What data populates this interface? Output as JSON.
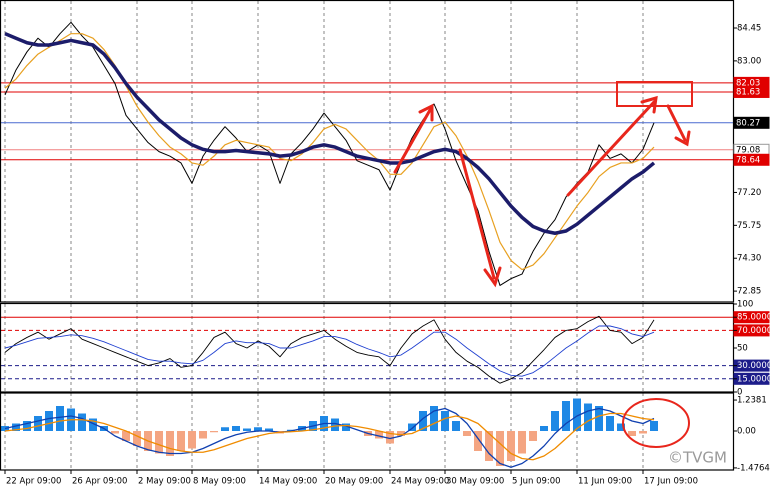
{
  "watermark": "©TVGM",
  "chart_data": [
    {
      "type": "line",
      "categories": [
        "22 Apr 09:00",
        null,
        null,
        null,
        null,
        null,
        "26 Apr 09:00",
        null,
        null,
        null,
        null,
        null,
        "2 May 09:00",
        null,
        null,
        null,
        null,
        "8 May 09:00",
        null,
        null,
        null,
        null,
        null,
        "14 May 09:00",
        null,
        null,
        null,
        null,
        null,
        "20 May 09:00",
        null,
        null,
        null,
        null,
        null,
        "24 May 09:00",
        null,
        null,
        null,
        null,
        "30 May 09:00",
        null,
        null,
        null,
        null,
        null,
        "5 Jun 09:00",
        null,
        null,
        null,
        null,
        null,
        "11 Jun 09:00",
        null,
        null,
        null,
        null,
        null,
        "17 Jun 09:00",
        null
      ],
      "series": [
        {
          "color": "#000000",
          "values": [
            81.5,
            82.6,
            83.4,
            84.0,
            83.6,
            84.2,
            84.7,
            84.1,
            83.6,
            82.8,
            82.0,
            80.6,
            80.0,
            79.4,
            79.0,
            78.8,
            78.5,
            77.6,
            78.8,
            79.5,
            80.1,
            79.6,
            79.0,
            79.3,
            79.0,
            77.6,
            78.9,
            79.4,
            80.0,
            80.7,
            80.1,
            79.5,
            78.6,
            78.4,
            78.2,
            77.3,
            78.5,
            79.6,
            80.4,
            81.1,
            80.0,
            78.6,
            77.5,
            76.4,
            74.6,
            73.1,
            73.4,
            73.6,
            74.6,
            75.4,
            76.0,
            77.0,
            77.6,
            78.1,
            79.3,
            78.7,
            78.9,
            78.5,
            79.1,
            80.27
          ]
        },
        {
          "color": "#e8a020",
          "values": [
            81.8,
            82.2,
            82.8,
            83.3,
            83.6,
            83.9,
            84.2,
            84.2,
            84.0,
            83.5,
            82.8,
            81.9,
            81.0,
            80.3,
            79.7,
            79.2,
            78.9,
            78.5,
            78.4,
            78.8,
            79.3,
            79.5,
            79.4,
            79.3,
            79.2,
            78.7,
            78.6,
            78.9,
            79.4,
            80.0,
            80.2,
            80.0,
            79.5,
            79.0,
            78.6,
            78.0,
            78.0,
            78.5,
            79.3,
            80.1,
            80.3,
            79.7,
            78.8,
            77.7,
            76.4,
            75.0,
            74.2,
            73.8,
            74.0,
            74.5,
            75.2,
            75.9,
            76.6,
            77.2,
            77.9,
            78.3,
            78.5,
            78.5,
            78.7,
            79.2
          ]
        },
        {
          "color": "#1c1c6a",
          "values": [
            84.2,
            84.0,
            83.8,
            83.7,
            83.7,
            83.8,
            83.9,
            83.8,
            83.7,
            83.3,
            82.7,
            82.0,
            81.4,
            80.9,
            80.4,
            80.0,
            79.6,
            79.3,
            79.1,
            79.0,
            79.0,
            79.05,
            79.0,
            78.95,
            78.9,
            78.8,
            78.85,
            79.0,
            79.2,
            79.3,
            79.2,
            79.0,
            78.8,
            78.7,
            78.6,
            78.5,
            78.5,
            78.6,
            78.8,
            79.0,
            79.1,
            79.0,
            78.7,
            78.3,
            77.8,
            77.2,
            76.6,
            76.1,
            75.7,
            75.5,
            75.4,
            75.5,
            75.8,
            76.2,
            76.6,
            77.0,
            77.4,
            77.8,
            78.1,
            78.5
          ]
        }
      ],
      "ylim": [
        72.37,
        85.64
      ],
      "yticks": [
        84.45,
        {
          "value": 83,
          "label": "83.00"
        },
        {
          "value": 77.2,
          "label": "77.20"
        },
        75.75,
        {
          "value": 74.3,
          "label": "74.30"
        },
        72.85
      ],
      "levels": [
        {
          "value": 82.03,
          "color": "#e00000",
          "box": "#e00000"
        },
        {
          "value": 81.63,
          "color": "#e00000",
          "box": "#e00000"
        },
        {
          "value": 80.27,
          "color": "#4a6ad0",
          "box": "#000000"
        },
        {
          "value": 79.08,
          "color": "#f08080",
          "box": "#ffffff"
        },
        {
          "value": 78.64,
          "color": "#e00000",
          "box": "#e00000"
        }
      ]
    },
    {
      "type": "line",
      "series": [
        {
          "color": "#000000",
          "values": [
            45,
            55,
            62,
            68,
            60,
            66,
            72,
            60,
            55,
            50,
            45,
            40,
            35,
            30,
            33,
            38,
            28,
            30,
            45,
            62,
            68,
            55,
            50,
            58,
            52,
            40,
            55,
            62,
            66,
            70,
            60,
            52,
            45,
            42,
            40,
            30,
            50,
            66,
            75,
            82,
            60,
            45,
            35,
            28,
            18,
            10,
            15,
            22,
            35,
            48,
            62,
            70,
            72,
            80,
            86,
            70,
            68,
            55,
            62,
            82
          ]
        },
        {
          "color": "#2040d0",
          "values": [
            50,
            53,
            57,
            61,
            62,
            63,
            65,
            64,
            61,
            57,
            52,
            47,
            42,
            37,
            35,
            35,
            33,
            32,
            36,
            45,
            55,
            58,
            56,
            56,
            55,
            50,
            50,
            54,
            58,
            63,
            63,
            60,
            54,
            49,
            45,
            40,
            42,
            50,
            59,
            68,
            68,
            60,
            50,
            41,
            32,
            24,
            19,
            18,
            22,
            30,
            40,
            50,
            58,
            67,
            75,
            75,
            72,
            66,
            63,
            68
          ]
        }
      ],
      "ylim": [
        0,
        100
      ],
      "yticks": [
        100,
        {
          "value": 85,
          "label": "85.0000"
        },
        {
          "value": 70,
          "label": "70.0000"
        },
        50,
        {
          "value": 30,
          "label": "30.0000"
        },
        {
          "value": 15,
          "label": "15.0000"
        },
        0
      ],
      "levels": [
        {
          "value": 85,
          "color": "#e00000",
          "box": "#e00000"
        },
        {
          "value": 70,
          "color": "#e00000",
          "box": "#e00000",
          "dashed": true
        },
        {
          "value": 30,
          "color": "#1c1c8a",
          "box": "#1c1c8a",
          "dashed": true
        },
        {
          "value": 15,
          "color": "#1c1c8a",
          "box": "#1c1c8a",
          "dashed": true
        }
      ]
    },
    {
      "type": "bar",
      "values": [
        0.2,
        0.3,
        0.4,
        0.6,
        0.8,
        1.0,
        0.9,
        0.7,
        0.5,
        0.2,
        -0.1,
        -0.4,
        -0.6,
        -0.8,
        -0.9,
        -1.0,
        -0.8,
        -0.7,
        -0.3,
        -0.05,
        0.15,
        0.2,
        0.1,
        0.15,
        0.1,
        -0.1,
        0.05,
        0.2,
        0.4,
        0.6,
        0.5,
        0.3,
        0.0,
        -0.2,
        -0.3,
        -0.5,
        -0.2,
        0.3,
        0.8,
        1.0,
        0.8,
        0.4,
        -0.2,
        -0.8,
        -1.2,
        -1.4,
        -1.2,
        -0.9,
        -0.4,
        0.2,
        0.8,
        1.2,
        1.3,
        1.1,
        1.0,
        0.6,
        0.3,
        -0.2,
        -0.1,
        0.4
      ],
      "color": "#1e88e5",
      "negative_color": "#f4a582",
      "series": [
        {
          "color": "#1040b0",
          "values": [
            0.1,
            0.2,
            0.3,
            0.4,
            0.5,
            0.55,
            0.6,
            0.5,
            0.3,
            0.1,
            -0.2,
            -0.4,
            -0.6,
            -0.75,
            -0.85,
            -0.9,
            -0.9,
            -0.85,
            -0.7,
            -0.5,
            -0.3,
            -0.15,
            -0.05,
            0.0,
            0.0,
            -0.05,
            0.0,
            0.1,
            0.2,
            0.3,
            0.3,
            0.2,
            0.05,
            -0.1,
            -0.2,
            -0.3,
            -0.2,
            0.1,
            0.5,
            0.8,
            0.9,
            0.7,
            0.3,
            -0.3,
            -0.9,
            -1.3,
            -1.45,
            -1.3,
            -1.0,
            -0.6,
            -0.1,
            0.3,
            0.6,
            0.8,
            0.9,
            0.8,
            0.6,
            0.4,
            0.3,
            0.5
          ]
        },
        {
          "color": "#f08c00",
          "values": [
            0.0,
            0.05,
            0.1,
            0.2,
            0.3,
            0.4,
            0.45,
            0.45,
            0.4,
            0.3,
            0.15,
            0.0,
            -0.2,
            -0.4,
            -0.55,
            -0.7,
            -0.8,
            -0.85,
            -0.85,
            -0.75,
            -0.6,
            -0.45,
            -0.3,
            -0.2,
            -0.1,
            -0.05,
            -0.03,
            0.0,
            0.05,
            0.12,
            0.2,
            0.22,
            0.18,
            0.1,
            0.0,
            -0.1,
            -0.15,
            -0.1,
            0.1,
            0.3,
            0.5,
            0.6,
            0.5,
            0.3,
            -0.1,
            -0.5,
            -0.9,
            -1.1,
            -1.15,
            -1.0,
            -0.7,
            -0.3,
            0.1,
            0.4,
            0.6,
            0.7,
            0.7,
            0.6,
            0.5,
            0.45
          ]
        }
      ],
      "ylim": [
        -1.56,
        1.52
      ],
      "yticks": [
        1.2381,
        {
          "value": 0,
          "label": "0.00"
        },
        -1.4764
      ]
    }
  ]
}
